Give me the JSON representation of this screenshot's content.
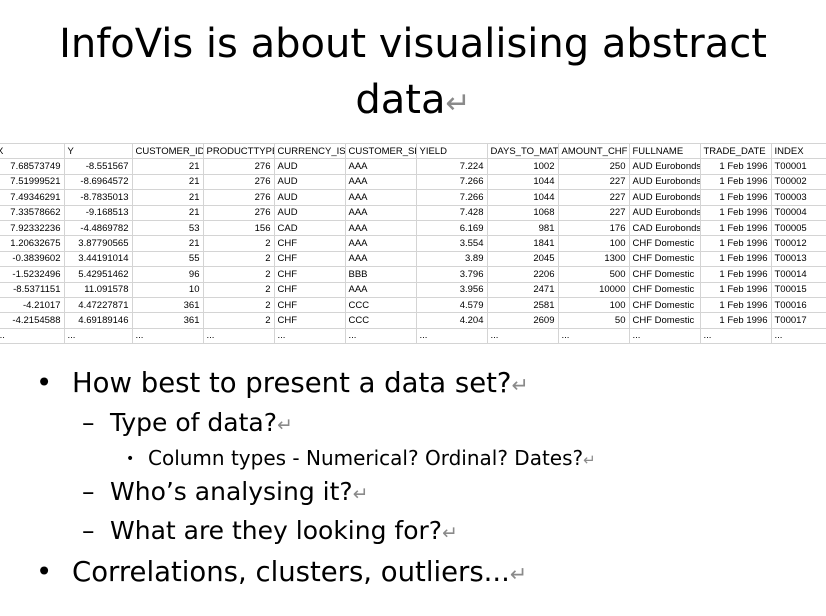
{
  "title": "InfoVis is about visualising abstract data",
  "return_mark": "↵",
  "table": {
    "headers": [
      "X",
      "Y",
      "CUSTOMER_ID",
      "PRODUCTTYPE",
      "CURRENCY_IS",
      "CUSTOMER_SI",
      "YIELD",
      "DAYS_TO_MAT",
      "AMOUNT_CHF",
      "FULLNAME",
      "TRADE_DATE",
      "INDEX"
    ],
    "rows": [
      [
        "7.68573749",
        "-8.551567",
        "21",
        "276",
        "AUD",
        "AAA",
        "7.224",
        "1002",
        "250",
        "AUD Eurobonds",
        "1 Feb 1996",
        "T00001"
      ],
      [
        "7.51999521",
        "-8.6964572",
        "21",
        "276",
        "AUD",
        "AAA",
        "7.266",
        "1044",
        "227",
        "AUD Eurobonds",
        "1 Feb 1996",
        "T00002"
      ],
      [
        "7.49346291",
        "-8.7835013",
        "21",
        "276",
        "AUD",
        "AAA",
        "7.266",
        "1044",
        "227",
        "AUD Eurobonds",
        "1 Feb 1996",
        "T00003"
      ],
      [
        "7.33578662",
        "-9.168513",
        "21",
        "276",
        "AUD",
        "AAA",
        "7.428",
        "1068",
        "227",
        "AUD Eurobonds",
        "1 Feb 1996",
        "T00004"
      ],
      [
        "7.92332236",
        "-4.4869782",
        "53",
        "156",
        "CAD",
        "AAA",
        "6.169",
        "981",
        "176",
        "CAD Eurobonds",
        "1 Feb 1996",
        "T00005"
      ],
      [
        "1.20632675",
        "3.87790565",
        "21",
        "2",
        "CHF",
        "AAA",
        "3.554",
        "1841",
        "100",
        "CHF Domestic",
        "1 Feb 1996",
        "T00012"
      ],
      [
        "-0.3839602",
        "3.44191014",
        "55",
        "2",
        "CHF",
        "AAA",
        "3.89",
        "2045",
        "1300",
        "CHF Domestic",
        "1 Feb 1996",
        "T00013"
      ],
      [
        "-1.5232496",
        "5.42951462",
        "96",
        "2",
        "CHF",
        "BBB",
        "3.796",
        "2206",
        "500",
        "CHF Domestic",
        "1 Feb 1996",
        "T00014"
      ],
      [
        "-8.5371151",
        "11.091578",
        "10",
        "2",
        "CHF",
        "AAA",
        "3.956",
        "2471",
        "10000",
        "CHF Domestic",
        "1 Feb 1996",
        "T00015"
      ],
      [
        "-4.21017",
        "4.47227871",
        "361",
        "2",
        "CHF",
        "CCC",
        "4.579",
        "2581",
        "100",
        "CHF Domestic",
        "1 Feb 1996",
        "T00016"
      ],
      [
        "-4.2154588",
        "4.69189146",
        "361",
        "2",
        "CHF",
        "CCC",
        "4.204",
        "2609",
        "50",
        "CHF Domestic",
        "1 Feb 1996",
        "T00017"
      ],
      [
        "...",
        "...",
        "...",
        "...",
        "...",
        "...",
        "...",
        "...",
        "...",
        "...",
        "...",
        "..."
      ]
    ]
  },
  "bullets": {
    "b1": "How best to present a data set?",
    "b1_1": "Type of data?",
    "b1_1_1": "Column types - Numerical? Ordinal? Dates?",
    "b1_2": "Who’s analysing it?",
    "b1_3": "What are they looking for?",
    "b2": "Correlations, clusters, outliers..."
  },
  "glyphs": {
    "bullet": "•",
    "dash": "–"
  }
}
